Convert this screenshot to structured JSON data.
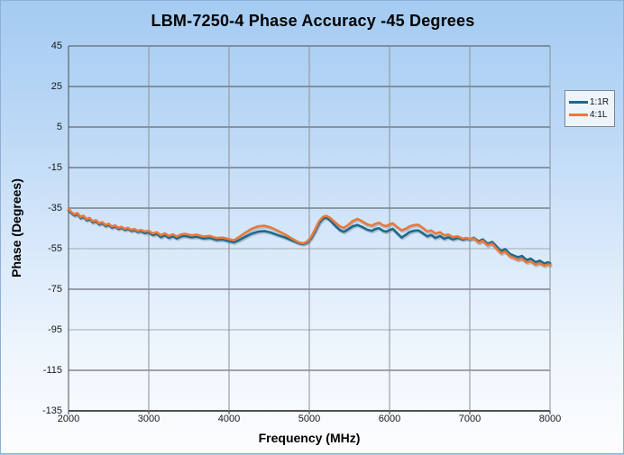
{
  "chart_data": {
    "type": "line",
    "title": "LBM-7250-4 Phase Accuracy -45 Degrees",
    "xlabel": "Frequency (MHz)",
    "ylabel": "Phase (Degrees)",
    "xlim": [
      2000,
      8000
    ],
    "ylim": [
      -135,
      45
    ],
    "x_ticks": [
      2000,
      3000,
      4000,
      5000,
      6000,
      7000,
      8000
    ],
    "y_ticks": [
      45,
      25,
      5,
      -15,
      -35,
      -55,
      -75,
      -95,
      -115,
      -135
    ],
    "grid": true,
    "legend_position": "right",
    "x": [
      2000,
      2040,
      2075,
      2110,
      2150,
      2185,
      2225,
      2260,
      2300,
      2340,
      2380,
      2420,
      2460,
      2500,
      2540,
      2580,
      2620,
      2660,
      2700,
      2740,
      2780,
      2820,
      2860,
      2900,
      2950,
      3000,
      3050,
      3100,
      3150,
      3200,
      3250,
      3300,
      3350,
      3400,
      3450,
      3530,
      3600,
      3680,
      3760,
      3840,
      3920,
      4000,
      4060,
      4120,
      4200,
      4280,
      4360,
      4440,
      4520,
      4600,
      4700,
      4800,
      4870,
      4920,
      4970,
      5020,
      5070,
      5120,
      5170,
      5210,
      5260,
      5320,
      5380,
      5430,
      5480,
      5540,
      5600,
      5660,
      5720,
      5780,
      5830,
      5870,
      5920,
      5960,
      6000,
      6040,
      6090,
      6150,
      6200,
      6250,
      6310,
      6360,
      6420,
      6470,
      6520,
      6570,
      6630,
      6680,
      6730,
      6790,
      6850,
      6910,
      6960,
      7000,
      7050,
      7110,
      7160,
      7220,
      7280,
      7340,
      7390,
      7440,
      7500,
      7550,
      7600,
      7650,
      7710,
      7760,
      7820,
      7870,
      7930,
      7970,
      8000
    ],
    "series": [
      {
        "name": "1:1R",
        "color": "#1E6A8C",
        "values": [
          -36.0,
          -37.6,
          -38.6,
          -37.9,
          -39.9,
          -39.2,
          -41.0,
          -40.3,
          -42.0,
          -41.4,
          -43.0,
          -42.4,
          -43.8,
          -43.2,
          -44.6,
          -44.0,
          -45.2,
          -44.7,
          -45.7,
          -45.2,
          -46.2,
          -45.8,
          -46.7,
          -46.3,
          -47.3,
          -47.0,
          -48.3,
          -47.7,
          -49.3,
          -48.4,
          -49.7,
          -48.9,
          -50.0,
          -49.0,
          -48.7,
          -49.4,
          -49.1,
          -50.0,
          -49.7,
          -50.7,
          -50.5,
          -51.3,
          -51.9,
          -50.9,
          -49.2,
          -47.6,
          -46.6,
          -46.3,
          -47.0,
          -48.2,
          -49.5,
          -51.2,
          -52.3,
          -52.7,
          -52.0,
          -50.0,
          -46.5,
          -42.5,
          -40.2,
          -39.7,
          -41.0,
          -43.6,
          -45.8,
          -46.7,
          -45.6,
          -44.0,
          -43.3,
          -44.3,
          -45.6,
          -46.2,
          -45.2,
          -44.9,
          -46.2,
          -46.6,
          -45.8,
          -45.2,
          -47.2,
          -49.5,
          -48.2,
          -46.8,
          -46.1,
          -46.0,
          -47.5,
          -48.9,
          -48.2,
          -49.7,
          -48.8,
          -50.1,
          -49.4,
          -50.4,
          -49.7,
          -50.5,
          -50.0,
          -50.3,
          -49.6,
          -51.4,
          -50.4,
          -52.5,
          -51.7,
          -54.2,
          -56.2,
          -55.2,
          -57.6,
          -58.4,
          -59.2,
          -58.6,
          -60.6,
          -59.9,
          -61.7,
          -60.9,
          -62.3,
          -61.7,
          -62.1
        ]
      },
      {
        "name": "4:1L",
        "color": "#E8793C",
        "values": [
          -35.5,
          -37.1,
          -38.1,
          -37.4,
          -39.4,
          -38.7,
          -40.5,
          -39.8,
          -41.5,
          -40.9,
          -42.5,
          -41.9,
          -43.3,
          -42.7,
          -44.1,
          -43.5,
          -44.7,
          -44.2,
          -45.2,
          -44.7,
          -45.7,
          -45.3,
          -46.2,
          -45.8,
          -46.5,
          -46.2,
          -47.5,
          -46.9,
          -48.3,
          -47.4,
          -48.7,
          -47.9,
          -49.0,
          -48.0,
          -47.7,
          -48.4,
          -48.1,
          -49.0,
          -48.7,
          -49.7,
          -49.5,
          -50.3,
          -50.9,
          -49.4,
          -47.2,
          -45.2,
          -44.0,
          -43.7,
          -44.5,
          -46.0,
          -48.0,
          -50.4,
          -51.9,
          -52.4,
          -51.6,
          -49.4,
          -45.7,
          -41.6,
          -39.3,
          -38.8,
          -39.8,
          -42.0,
          -43.9,
          -44.7,
          -43.4,
          -41.4,
          -40.3,
          -41.5,
          -43.0,
          -43.6,
          -42.6,
          -42.2,
          -43.5,
          -43.8,
          -43.0,
          -42.5,
          -44.2,
          -45.9,
          -45.2,
          -44.0,
          -43.3,
          -43.2,
          -44.9,
          -46.5,
          -46.0,
          -47.5,
          -46.9,
          -48.4,
          -48.0,
          -49.3,
          -48.9,
          -50.0,
          -49.7,
          -50.2,
          -49.9,
          -52.0,
          -51.1,
          -53.3,
          -52.6,
          -55.3,
          -57.3,
          -56.4,
          -58.8,
          -59.6,
          -60.5,
          -60.0,
          -61.8,
          -61.2,
          -62.9,
          -62.2,
          -63.4,
          -62.8,
          -63.0
        ]
      }
    ]
  }
}
